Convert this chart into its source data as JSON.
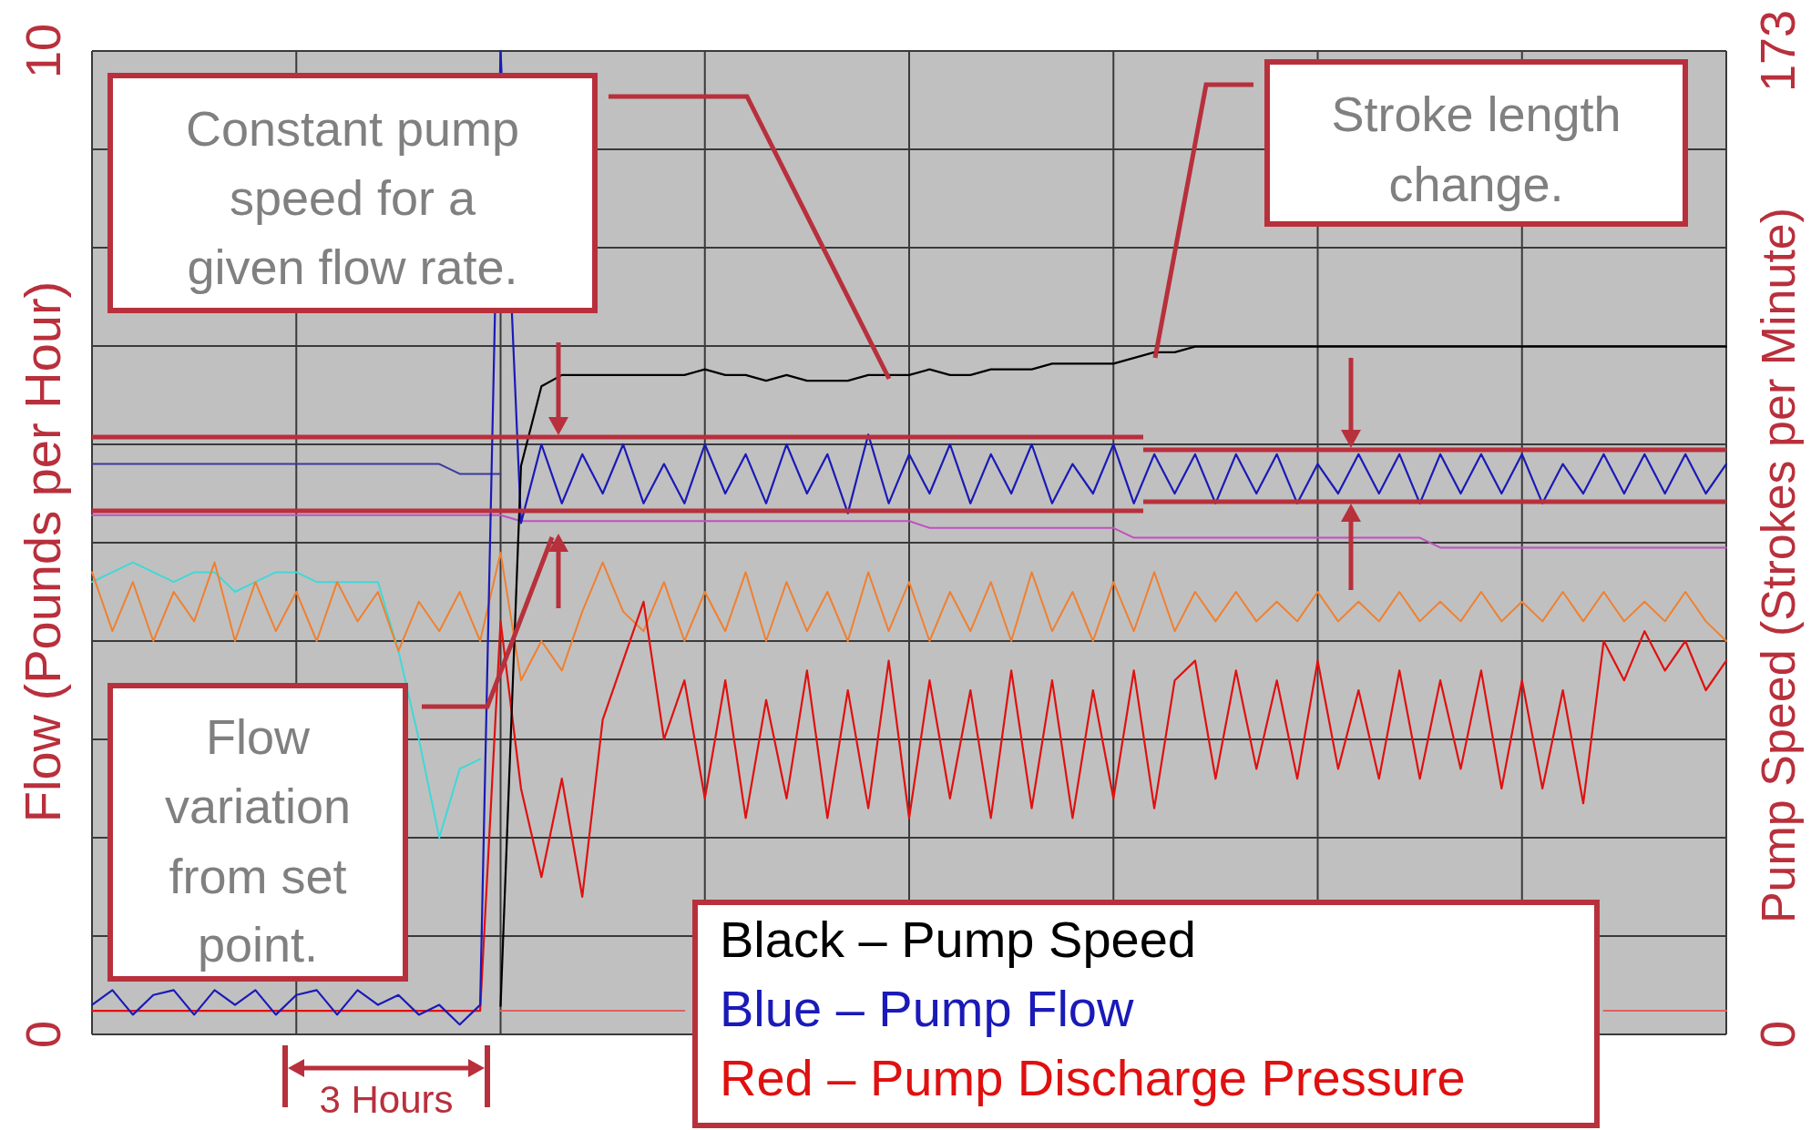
{
  "chart_data": {
    "type": "line",
    "ylabel": "Flow (Pounds per Hour)",
    "y2label": "Pump Speed (Strokes per Minute)",
    "categories": [
      null,
      null,
      null,
      null,
      null,
      null,
      null,
      null,
      null,
      null,
      null,
      null,
      null,
      null,
      null,
      null,
      null,
      null,
      null,
      null,
      null,
      null,
      null,
      null,
      null,
      null,
      null,
      null,
      null,
      null,
      null,
      null,
      null,
      null,
      null,
      null,
      null,
      null,
      null,
      null,
      null,
      null,
      null,
      null,
      null,
      null,
      null,
      null,
      null,
      null,
      null,
      null,
      null,
      null,
      null,
      null,
      null,
      null,
      null,
      null,
      null,
      null,
      null,
      null,
      null,
      null,
      null,
      null,
      null,
      null,
      null,
      null,
      null,
      null,
      null,
      null,
      null,
      null,
      null,
      null,
      null
    ],
    "ylim": [
      0,
      10
    ],
    "yticks": [
      0,
      {
        "value": 1,
        "label": null
      },
      {
        "value": 2,
        "label": null
      },
      {
        "value": 3,
        "label": null
      },
      {
        "value": 4,
        "label": null
      },
      {
        "value": 5,
        "label": null
      },
      {
        "value": 6,
        "label": null
      },
      {
        "value": 7,
        "label": null
      },
      {
        "value": 8,
        "label": null
      },
      {
        "value": 9,
        "label": null
      },
      10
    ],
    "y2lim": [
      0,
      173
    ],
    "y2ticks": [
      0,
      173
    ],
    "grid": true,
    "series": [
      {
        "color": "#c050c0",
        "values": [
          5.28,
          5.28,
          5.28,
          5.28,
          5.28,
          5.28,
          5.28,
          5.28,
          5.28,
          5.28,
          5.28,
          5.28,
          5.28,
          5.28,
          5.28,
          5.28,
          5.28,
          5.28,
          5.28,
          5.28,
          5.28,
          5.22,
          5.22,
          5.22,
          5.22,
          5.22,
          5.22,
          5.22,
          5.22,
          5.22,
          5.22,
          5.22,
          5.22,
          5.22,
          5.22,
          5.22,
          5.22,
          5.22,
          5.22,
          5.22,
          5.22,
          5.15,
          5.15,
          5.15,
          5.15,
          5.15,
          5.15,
          5.15,
          5.15,
          5.15,
          5.15,
          5.05,
          5.05,
          5.05,
          5.05,
          5.05,
          5.05,
          5.05,
          5.05,
          5.05,
          5.05,
          5.05,
          5.05,
          5.05,
          5.05,
          5.05,
          4.95,
          4.95,
          4.95,
          4.95,
          4.95,
          4.95,
          4.95,
          4.95,
          4.95,
          4.95,
          4.95,
          4.95,
          4.95,
          4.95,
          4.95
        ]
      },
      {
        "color": "#40d8d8",
        "values": [
          4.6,
          4.7,
          4.8,
          4.7,
          4.6,
          4.7,
          4.7,
          4.5,
          4.6,
          4.7,
          4.7,
          4.6,
          4.6,
          4.6,
          4.6,
          3.9,
          3.0,
          2.0,
          2.7,
          2.8,
          null,
          null,
          null,
          null,
          null,
          null,
          null,
          null,
          null,
          null,
          null,
          null,
          null,
          null,
          null,
          null,
          null,
          null,
          null,
          null,
          null,
          null,
          null,
          null,
          null,
          null,
          null,
          null,
          null,
          null,
          null,
          null,
          null,
          null,
          null,
          null,
          null,
          null,
          null,
          null,
          null,
          null,
          null,
          null,
          null,
          null,
          null,
          null,
          null,
          null,
          null,
          null,
          null,
          null,
          null,
          null,
          null,
          null,
          null,
          null,
          null
        ]
      },
      {
        "color": "#f08030",
        "values": [
          4.7,
          4.1,
          4.6,
          4.0,
          4.5,
          4.2,
          4.8,
          4.0,
          4.6,
          4.1,
          4.5,
          4.0,
          4.6,
          4.2,
          4.5,
          3.9,
          4.4,
          4.1,
          4.5,
          4.0,
          4.9,
          3.6,
          4.0,
          3.7,
          4.3,
          4.8,
          4.3,
          4.1,
          4.6,
          4.0,
          4.5,
          4.1,
          4.7,
          4.0,
          4.6,
          4.1,
          4.5,
          4.0,
          4.7,
          4.1,
          4.6,
          4.0,
          4.5,
          4.1,
          4.6,
          4.0,
          4.7,
          4.1,
          4.5,
          4.0,
          4.6,
          4.1,
          4.7,
          4.1,
          4.5,
          4.2,
          4.5,
          4.2,
          4.4,
          4.2,
          4.5,
          4.2,
          4.4,
          4.2,
          4.5,
          4.2,
          4.4,
          4.2,
          4.5,
          4.2,
          4.4,
          4.2,
          4.5,
          4.2,
          4.5,
          4.2,
          4.4,
          4.2,
          4.5,
          4.2,
          4.0
        ]
      },
      {
        "color": "#e06060",
        "values": [
          null,
          null,
          null,
          null,
          null,
          null,
          null,
          null,
          null,
          null,
          null,
          null,
          null,
          null,
          null,
          null,
          null,
          null,
          null,
          null,
          0.24,
          0.24,
          0.24,
          0.24,
          0.24,
          0.24,
          0.24,
          0.24,
          0.24,
          0.24,
          null,
          null,
          null,
          null,
          null,
          null,
          null,
          null,
          null,
          null,
          null,
          null,
          null,
          null,
          null,
          null,
          null,
          null,
          null,
          null,
          null,
          null,
          null,
          null,
          null,
          null,
          null,
          null,
          null,
          null,
          null,
          null,
          null,
          null,
          null,
          null,
          null,
          null,
          null,
          null,
          null,
          null,
          null,
          null,
          0.24,
          0.24,
          0.24,
          0.24,
          0.24,
          0.24,
          0.24
        ]
      },
      {
        "name": "Red – Pump Discharge Pressure",
        "color": "#e01010",
        "values": [
          0.24,
          0.24,
          0.24,
          0.24,
          0.24,
          0.24,
          0.24,
          0.24,
          0.24,
          0.24,
          0.24,
          0.24,
          0.24,
          0.24,
          0.24,
          0.24,
          0.24,
          0.24,
          0.24,
          0.24,
          4.2,
          2.5,
          1.6,
          2.6,
          1.4,
          3.2,
          3.8,
          4.4,
          3.0,
          3.6,
          2.4,
          3.6,
          2.2,
          3.4,
          2.4,
          3.7,
          2.2,
          3.5,
          2.3,
          3.8,
          2.2,
          3.6,
          2.4,
          3.5,
          2.2,
          3.7,
          2.3,
          3.6,
          2.2,
          3.5,
          2.4,
          3.7,
          2.3,
          3.6,
          3.8,
          2.6,
          3.7,
          2.7,
          3.6,
          2.6,
          3.8,
          2.7,
          3.5,
          2.6,
          3.7,
          2.6,
          3.6,
          2.7,
          3.7,
          2.5,
          3.6,
          2.5,
          3.5,
          2.35,
          4.0,
          3.6,
          4.1,
          3.7,
          4.0,
          3.5,
          3.8
        ]
      },
      {
        "color": "#3a3a9a",
        "values": [
          5.8,
          5.8,
          5.8,
          5.8,
          5.8,
          5.8,
          5.8,
          5.8,
          5.8,
          5.8,
          5.8,
          5.8,
          5.8,
          5.8,
          5.8,
          5.8,
          5.8,
          5.8,
          5.7,
          5.7,
          5.7,
          null,
          null,
          null,
          null,
          null,
          null,
          null,
          null,
          null,
          null,
          null,
          null,
          null,
          null,
          null,
          null,
          null,
          null,
          null,
          null,
          null,
          null,
          null,
          null,
          null,
          null,
          null,
          null,
          null,
          null,
          null,
          null,
          null,
          null,
          null,
          null,
          null,
          null,
          null,
          null,
          null,
          null,
          null,
          null,
          null,
          null,
          null,
          null,
          null,
          null,
          null,
          null,
          null,
          null,
          null,
          null,
          null,
          null,
          null,
          null
        ]
      },
      {
        "name": "Blue – Pump Flow",
        "color": "#1a1ab8",
        "values": [
          0.3,
          0.45,
          0.2,
          0.4,
          0.45,
          0.2,
          0.45,
          0.3,
          0.45,
          0.2,
          0.4,
          0.45,
          0.2,
          0.45,
          0.3,
          0.4,
          0.2,
          0.3,
          0.1,
          0.3,
          10,
          5.2,
          6.0,
          5.4,
          5.9,
          5.5,
          6.0,
          5.4,
          5.8,
          5.4,
          6.0,
          5.5,
          5.9,
          5.4,
          6.0,
          5.5,
          5.9,
          5.3,
          6.1,
          5.4,
          5.9,
          5.5,
          6.0,
          5.4,
          5.9,
          5.5,
          6.0,
          5.4,
          5.8,
          5.5,
          6.0,
          5.4,
          5.9,
          5.5,
          5.9,
          5.4,
          5.9,
          5.5,
          5.9,
          5.4,
          5.8,
          5.5,
          5.9,
          5.5,
          5.9,
          5.4,
          5.9,
          5.5,
          5.9,
          5.5,
          5.9,
          5.4,
          5.8,
          5.5,
          5.9,
          5.5,
          5.9,
          5.5,
          5.9,
          5.5,
          5.8
        ]
      },
      {
        "name": "Black – Pump Speed",
        "color": "#000000",
        "axis": "y2",
        "values": [
          null,
          null,
          null,
          null,
          null,
          null,
          null,
          null,
          null,
          null,
          null,
          null,
          null,
          null,
          null,
          null,
          null,
          null,
          null,
          null,
          5,
          100,
          114,
          116,
          116,
          116,
          116,
          116,
          116,
          116,
          117,
          116,
          116,
          115,
          116,
          115,
          115,
          115,
          116,
          116,
          116,
          117,
          116,
          116,
          117,
          117,
          117,
          118,
          118,
          118,
          118,
          119,
          120,
          120,
          121,
          121,
          121,
          121,
          121,
          121,
          121,
          121,
          121,
          121,
          121,
          121,
          121,
          121,
          121,
          121,
          121,
          121,
          121,
          121,
          121,
          121,
          121,
          121,
          121,
          121,
          121
        ]
      }
    ],
    "annotations": [
      "Constant pump speed for a given flow rate.",
      "Flow variation from set point.",
      "Stroke length change.",
      "3 Hours"
    ]
  }
}
